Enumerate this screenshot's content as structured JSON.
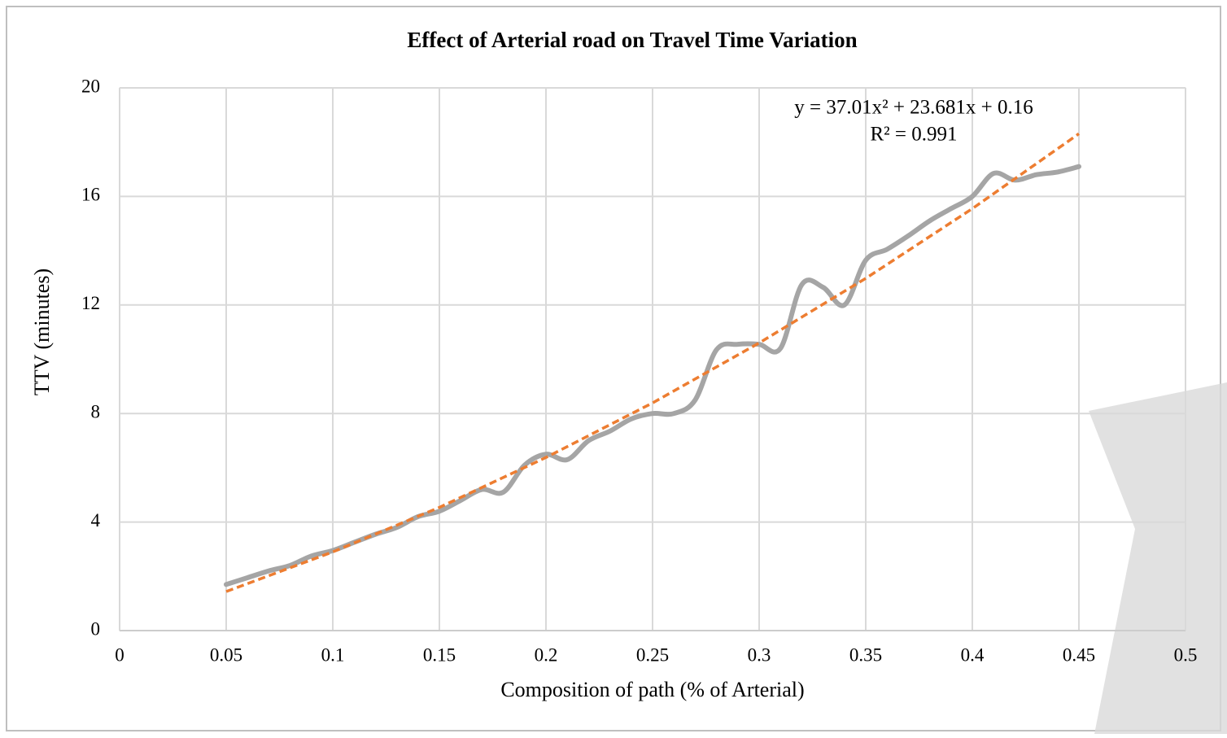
{
  "chart_data": {
    "type": "line",
    "title": "Effect of Arterial road on Travel Time Variation",
    "x_label": "Composition of path (% of Arterial)",
    "y_label": "TTV (minutes)",
    "x": [
      0.05,
      0.06,
      0.07,
      0.08,
      0.09,
      0.1,
      0.11,
      0.12,
      0.13,
      0.14,
      0.15,
      0.16,
      0.17,
      0.18,
      0.19,
      0.2,
      0.21,
      0.22,
      0.23,
      0.24,
      0.25,
      0.26,
      0.27,
      0.28,
      0.29,
      0.3,
      0.31,
      0.32,
      0.33,
      0.34,
      0.35,
      0.36,
      0.37,
      0.38,
      0.39,
      0.4,
      0.41,
      0.42,
      0.43,
      0.44,
      0.45
    ],
    "series": [
      {
        "color": "#a5a5a5",
        "values": [
          1.7,
          1.95,
          2.2,
          2.4,
          2.75,
          2.95,
          3.25,
          3.55,
          3.8,
          4.2,
          4.4,
          4.8,
          5.2,
          5.1,
          6.1,
          6.5,
          6.3,
          7.0,
          7.35,
          7.8,
          8.0,
          8.0,
          8.5,
          10.35,
          10.55,
          10.55,
          10.4,
          12.75,
          12.65,
          12.0,
          13.65,
          14.05,
          14.55,
          15.1,
          15.55,
          16.0,
          16.85,
          16.6,
          16.8,
          16.9,
          17.1
        ]
      }
    ],
    "trendline": {
      "color": "#ed7d31",
      "x": [
        0.05,
        0.1,
        0.15,
        0.2,
        0.25,
        0.3,
        0.35,
        0.4,
        0.45
      ],
      "values": [
        1.44,
        2.9,
        4.54,
        6.38,
        8.39,
        10.6,
        12.98,
        15.55,
        18.31
      ],
      "equation": "y = 37.01x² + 23.681x + 0.16",
      "r_squared": "R² = 0.991"
    },
    "xlim": [
      0,
      0.5
    ],
    "xticks": [
      0,
      0.05,
      0.1,
      0.15,
      0.2,
      0.25,
      0.3,
      0.35,
      0.4,
      0.45,
      0.5
    ],
    "ylim": [
      0,
      20
    ],
    "yticks": [
      0,
      4,
      8,
      12,
      16,
      20
    ],
    "grid": true
  }
}
